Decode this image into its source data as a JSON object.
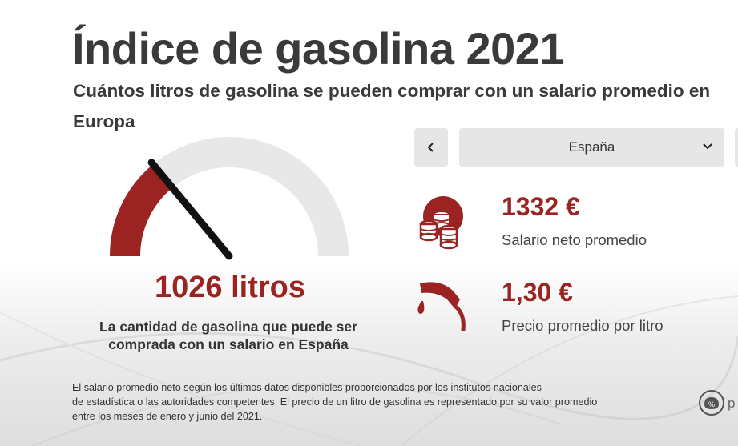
{
  "header": {
    "title": "Índice de gasolina 2021",
    "subtitle": "Cuántos litros de gasolina se pueden comprar con un salario promedio en Europa"
  },
  "gauge": {
    "value_text": "1026 litros",
    "caption": "La cantidad de gasolina que puede ser comprada con un salario en España",
    "fill_fraction": 0.28,
    "colors": {
      "fill": "#9b2423",
      "track": "#e8e8e8",
      "needle": "#111111"
    }
  },
  "selector": {
    "prev_icon": "chevron-left-icon",
    "selected_country": "España",
    "dropdown_icon": "chevron-down-icon"
  },
  "stats": {
    "salary": {
      "value": "1332 €",
      "label": "Salario neto promedio",
      "icon": "coins-icon"
    },
    "price": {
      "value": "1,30 €",
      "label": "Precio promedio por litro",
      "icon": "fuel-nozzle-icon"
    }
  },
  "footnote": {
    "lines": [
      "El salario promedio neto según los últimos datos disponibles proporcionados por los institutos nacionales",
      "de estadística o las autoridades competentes. El precio de un litro de gasolina es representado por su valor promedio",
      "entre los meses de enero y junio del 2021."
    ]
  },
  "branding": {
    "logo_icon": "piggy-bank-percent-icon",
    "logo_text_partial": "p"
  },
  "colors": {
    "accent": "#9b2423",
    "text_dark": "#3a3a3a",
    "control_bg": "#e6e6e6"
  }
}
